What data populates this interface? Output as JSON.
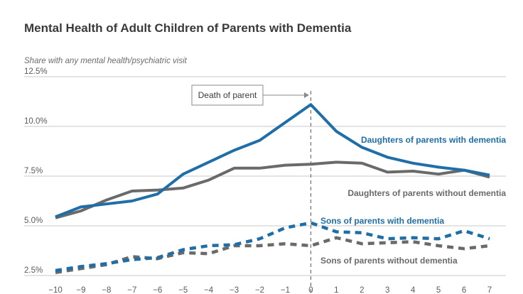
{
  "chart_data": {
    "type": "line",
    "title": "Mental Health of Adult Children of Parents with Dementia",
    "subtitle": "Share with any mental health/psychiatric visit",
    "x": [
      -10,
      -9,
      -8,
      -7,
      -6,
      -5,
      -4,
      -3,
      -2,
      -1,
      0,
      1,
      2,
      3,
      4,
      5,
      6,
      7
    ],
    "xlim": [
      -10,
      7
    ],
    "ylim": [
      2.5,
      12.5
    ],
    "yticks": [
      2.5,
      5.0,
      7.5,
      10.0,
      12.5
    ],
    "ytick_labels": [
      "2.5%",
      "5.0%",
      "7.5%",
      "10.0%",
      "12.5%"
    ],
    "xtick_labels": [
      "−10",
      "−9",
      "−8",
      "−7",
      "−6",
      "−5",
      "−4",
      "−3",
      "−2",
      "−1",
      "0",
      "1",
      "2",
      "3",
      "4",
      "5",
      "6",
      "7"
    ],
    "grid": "horizontal",
    "annotation": {
      "text": "Death of parent",
      "x": 0
    },
    "series": [
      {
        "name": "Daughters of parents with dementia",
        "color": "#1f6ea8",
        "dash": "solid",
        "values": [
          5.45,
          5.95,
          6.1,
          6.25,
          6.6,
          7.6,
          8.2,
          8.8,
          9.3,
          10.2,
          11.1,
          9.75,
          8.95,
          8.45,
          8.15,
          7.95,
          7.8,
          7.55
        ]
      },
      {
        "name": "Daughters of parents without dementia",
        "color": "#6a6a6a",
        "dash": "solid",
        "values": [
          5.4,
          5.75,
          6.3,
          6.75,
          6.8,
          6.9,
          7.3,
          7.9,
          7.9,
          8.05,
          8.1,
          8.2,
          8.15,
          7.7,
          7.75,
          7.6,
          7.8,
          7.45
        ]
      },
      {
        "name": "Sons of parents with dementia",
        "color": "#1f6ea8",
        "dash": "dashed",
        "values": [
          2.75,
          2.95,
          3.1,
          3.3,
          3.4,
          3.8,
          4.0,
          4.05,
          4.35,
          4.9,
          5.15,
          4.7,
          4.65,
          4.35,
          4.4,
          4.35,
          4.75,
          4.35
        ]
      },
      {
        "name": "Sons of parents without dementia",
        "color": "#6a6a6a",
        "dash": "dashed",
        "values": [
          2.65,
          2.85,
          3.05,
          3.45,
          3.35,
          3.65,
          3.6,
          4.0,
          4.0,
          4.1,
          4.0,
          4.4,
          4.1,
          4.15,
          4.2,
          4.0,
          3.85,
          4.0
        ]
      }
    ]
  }
}
